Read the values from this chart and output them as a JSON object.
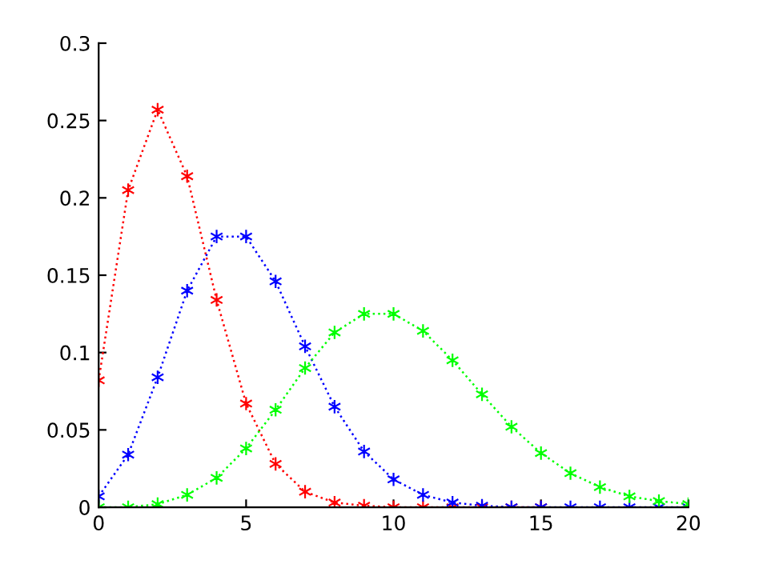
{
  "chart_data": {
    "type": "line",
    "marker": "cross",
    "line_style": "dotted",
    "grid": false,
    "legend": false,
    "x": [
      0,
      1,
      2,
      3,
      4,
      5,
      6,
      7,
      8,
      9,
      10,
      11,
      12,
      13,
      14,
      15,
      16,
      17,
      18,
      19,
      20
    ],
    "series": [
      {
        "color": "#ff0000",
        "values": [
          0.082,
          0.205,
          0.257,
          0.214,
          0.134,
          0.067,
          0.028,
          0.01,
          0.003,
          0.001,
          0.0,
          0.0,
          0.0,
          0.0,
          0.0,
          0.0,
          null,
          null,
          null,
          null,
          null
        ]
      },
      {
        "color": "#0000ff",
        "values": [
          0.007,
          0.034,
          0.084,
          0.14,
          0.175,
          0.175,
          0.146,
          0.104,
          0.065,
          0.036,
          0.018,
          0.008,
          0.003,
          0.001,
          0.0,
          0.0,
          0.0,
          0.0,
          0.0,
          0.0,
          0.0
        ]
      },
      {
        "color": "#00ff00",
        "values": [
          0.0,
          0.0,
          0.002,
          0.008,
          0.019,
          0.038,
          0.063,
          0.09,
          0.113,
          0.125,
          0.125,
          0.114,
          0.095,
          0.073,
          0.052,
          0.035,
          0.022,
          0.013,
          0.007,
          0.004,
          0.002
        ]
      }
    ],
    "xlim": [
      0,
      20
    ],
    "xticks": [
      0,
      5,
      10,
      15,
      20
    ],
    "ylim": [
      0,
      0.3
    ],
    "yticks": [
      0,
      0.05,
      0.1,
      0.15,
      0.2,
      0.25,
      0.3
    ]
  }
}
